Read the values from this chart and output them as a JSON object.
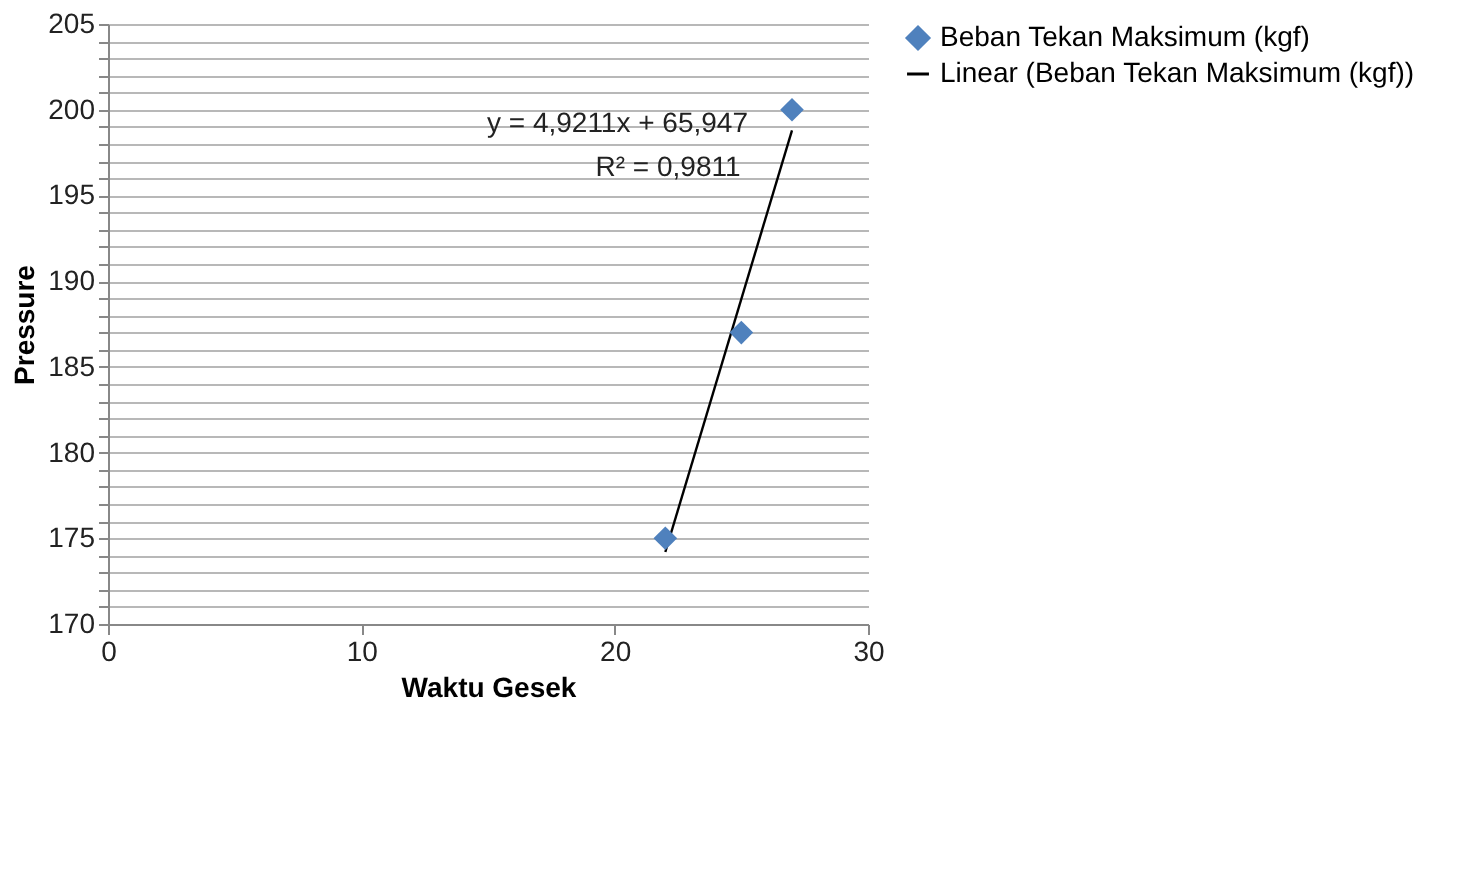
{
  "chart_data": {
    "type": "scatter",
    "xlabel": "Waktu Gesek",
    "ylabel": "Pressure",
    "xlim": [
      0,
      30
    ],
    "xticks": [
      0,
      10,
      20,
      30
    ],
    "ylim": [
      170,
      205
    ],
    "yticks": [
      170,
      {
        "value": 171,
        "label": null
      },
      {
        "value": 172,
        "label": null
      },
      {
        "value": 173,
        "label": null
      },
      {
        "value": 174,
        "label": null
      },
      175,
      {
        "value": 176,
        "label": null
      },
      {
        "value": 177,
        "label": null
      },
      {
        "value": 178,
        "label": null
      },
      {
        "value": 179,
        "label": null
      },
      180,
      {
        "value": 181,
        "label": null
      },
      {
        "value": 182,
        "label": null
      },
      {
        "value": 183,
        "label": null
      },
      {
        "value": 184,
        "label": null
      },
      185,
      {
        "value": 186,
        "label": null
      },
      {
        "value": 187,
        "label": null
      },
      {
        "value": 188,
        "label": null
      },
      {
        "value": 189,
        "label": null
      },
      190,
      {
        "value": 191,
        "label": null
      },
      {
        "value": 192,
        "label": null
      },
      {
        "value": 193,
        "label": null
      },
      {
        "value": 194,
        "label": null
      },
      195,
      {
        "value": 196,
        "label": null
      },
      {
        "value": 197,
        "label": null
      },
      {
        "value": 198,
        "label": null
      },
      {
        "value": 199,
        "label": null
      },
      200,
      {
        "value": 201,
        "label": null
      },
      {
        "value": 202,
        "label": null
      },
      {
        "value": 203,
        "label": null
      },
      {
        "value": 204,
        "label": null
      },
      205
    ],
    "grid": "y",
    "legend": "right",
    "series": [
      {
        "name": "Beban Tekan Maksimum (kgf)",
        "color": "#4f81bd",
        "marker": "diamond",
        "x": [
          22,
          25,
          27
        ],
        "values": [
          175,
          187,
          200
        ]
      },
      {
        "name": "Linear (Beban Tekan Maksimum (kgf))",
        "color": "#000000",
        "type": "line",
        "line_style": "solid",
        "x": [
          22,
          27
        ],
        "values": [
          174.2,
          198.8
        ]
      }
    ],
    "annotations": [
      "y = 4,9211x + 65,947",
      "R² = 0,9811"
    ]
  }
}
